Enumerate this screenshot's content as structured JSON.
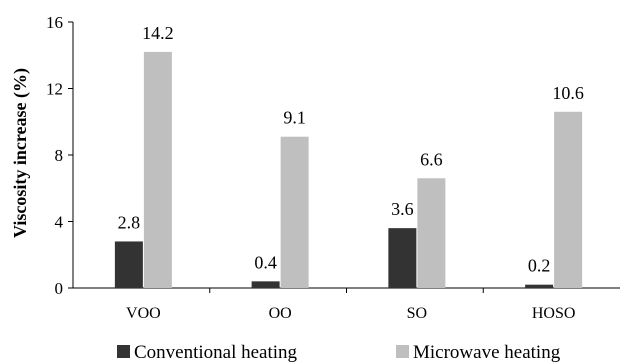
{
  "chart_data": {
    "type": "bar",
    "categories": [
      "VOO",
      "OO",
      "SO",
      "HOSO"
    ],
    "series": [
      {
        "name": "Conventional heating",
        "values": [
          2.8,
          0.4,
          3.6,
          0.2
        ],
        "color": "#333333"
      },
      {
        "name": "Microwave heating",
        "values": [
          14.2,
          9.1,
          6.6,
          10.6
        ],
        "color": "#bfbfbf"
      }
    ],
    "ylabel": "Viscosity increase (%)",
    "ylim": [
      0,
      16
    ],
    "yticks": [
      0,
      4,
      8,
      12,
      16
    ],
    "grid": false,
    "legend_position": "bottom"
  }
}
